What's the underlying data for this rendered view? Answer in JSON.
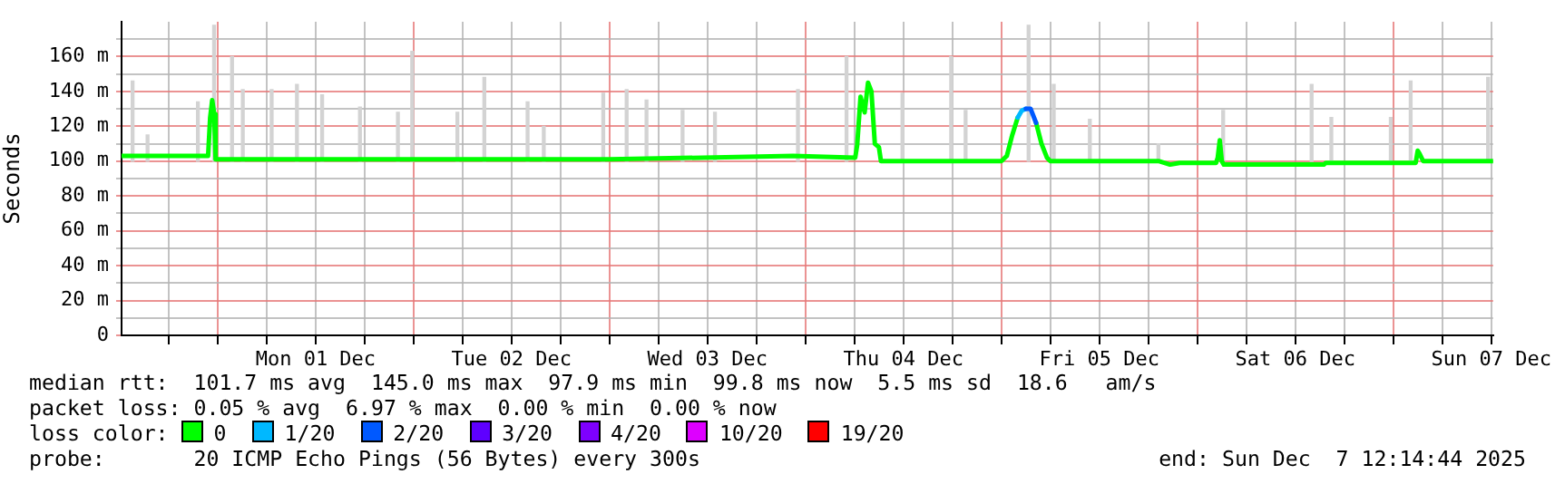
{
  "chart_data": {
    "type": "line",
    "ylabel": "Seconds",
    "legend_title": "loss color:",
    "legend": "bottom",
    "grid": true,
    "line_style": "solid",
    "marker": "none",
    "xlim": [
      "2025-11-30T12:14",
      "2025-12-07T12:14"
    ],
    "xticks": [
      {
        "value": "2025-11-30T18:00",
        "label": null
      },
      {
        "value": "2025-12-01T00:00",
        "label": null
      },
      {
        "value": "2025-12-01T06:00",
        "label": null
      },
      {
        "value": "2025-12-01T12:00",
        "label": "Mon 01 Dec"
      },
      {
        "value": "2025-12-01T18:00",
        "label": null
      },
      {
        "value": "2025-12-02T00:00",
        "label": null
      },
      {
        "value": "2025-12-02T06:00",
        "label": null
      },
      {
        "value": "2025-12-02T12:00",
        "label": "Tue 02 Dec"
      },
      {
        "value": "2025-12-02T18:00",
        "label": null
      },
      {
        "value": "2025-12-03T00:00",
        "label": null
      },
      {
        "value": "2025-12-03T06:00",
        "label": null
      },
      {
        "value": "2025-12-03T12:00",
        "label": "Wed 03 Dec"
      },
      {
        "value": "2025-12-03T18:00",
        "label": null
      },
      {
        "value": "2025-12-04T00:00",
        "label": null
      },
      {
        "value": "2025-12-04T06:00",
        "label": null
      },
      {
        "value": "2025-12-04T12:00",
        "label": "Thu 04 Dec"
      },
      {
        "value": "2025-12-04T18:00",
        "label": null
      },
      {
        "value": "2025-12-05T00:00",
        "label": null
      },
      {
        "value": "2025-12-05T06:00",
        "label": null
      },
      {
        "value": "2025-12-05T12:00",
        "label": "Fri 05 Dec"
      },
      {
        "value": "2025-12-05T18:00",
        "label": null
      },
      {
        "value": "2025-12-06T00:00",
        "label": null
      },
      {
        "value": "2025-12-06T06:00",
        "label": null
      },
      {
        "value": "2025-12-06T12:00",
        "label": "Sat 06 Dec"
      },
      {
        "value": "2025-12-06T18:00",
        "label": null
      },
      {
        "value": "2025-12-07T00:00",
        "label": null
      },
      {
        "value": "2025-12-07T06:00",
        "label": null
      },
      {
        "value": "2025-12-07T12:00",
        "label": "Sun 07 Dec"
      }
    ],
    "ylim": [
      0,
      180
    ],
    "yticks": [
      0,
      {
        "value": 10,
        "label": null
      },
      {
        "value": 20,
        "label": "20 m"
      },
      {
        "value": 30,
        "label": null
      },
      {
        "value": 40,
        "label": "40 m"
      },
      {
        "value": 50,
        "label": null
      },
      {
        "value": 60,
        "label": "60 m"
      },
      {
        "value": 70,
        "label": null
      },
      {
        "value": 80,
        "label": "80 m"
      },
      {
        "value": 90,
        "label": null
      },
      {
        "value": 100,
        "label": "100 m"
      },
      {
        "value": 110,
        "label": null
      },
      {
        "value": 120,
        "label": "120 m"
      },
      {
        "value": 130,
        "label": null
      },
      {
        "value": 140,
        "label": "140 m"
      },
      {
        "value": 150,
        "label": null
      },
      {
        "value": 160,
        "label": "160 m"
      },
      {
        "value": 170,
        "label": null
      }
    ],
    "series": [
      {
        "type": "bar",
        "color": "#d3d3d3",
        "x": [
          "2025-11-30T13:35",
          "2025-11-30T15:25",
          "2025-11-30T21:35",
          "2025-11-30T23:34",
          "2025-12-01T01:46",
          "2025-12-01T03:05",
          "2025-12-01T06:37",
          "2025-12-01T09:43",
          "2025-12-01T12:48",
          "2025-12-01T17:26",
          "2025-12-01T22:05",
          "2025-12-01T23:50",
          "2025-12-02T05:22",
          "2025-12-02T08:40",
          "2025-12-02T13:58",
          "2025-12-02T15:57",
          "2025-12-02T23:14",
          "2025-12-03T02:06",
          "2025-12-03T04:32",
          "2025-12-03T08:57",
          "2025-12-03T12:55",
          "2025-12-03T23:05",
          "2025-12-04T05:02",
          "2025-12-04T11:53",
          "2025-12-04T17:51",
          "2025-12-04T19:37",
          "2025-12-05T03:20",
          "2025-12-05T06:25",
          "2025-12-05T10:50",
          "2025-12-05T19:14",
          "2025-12-06T03:10",
          "2025-12-06T14:00",
          "2025-12-06T16:25",
          "2025-12-06T23:42",
          "2025-12-07T02:08",
          "2025-12-07T11:37"
        ],
        "base": [
          100,
          100,
          100,
          100,
          100,
          100,
          100,
          100,
          100,
          100,
          100,
          100,
          100,
          100,
          100,
          100,
          100,
          100,
          100,
          100,
          100,
          100,
          100,
          100,
          100,
          100,
          100,
          100,
          100,
          100,
          100,
          100,
          100,
          100,
          100,
          100
        ],
        "values": [
          46,
          15,
          34,
          78,
          60,
          41,
          41,
          44,
          38,
          31,
          28,
          63,
          28,
          48,
          34,
          20,
          39,
          41,
          35,
          29,
          28,
          41,
          60,
          39,
          60,
          29,
          78,
          44,
          24,
          10,
          29,
          44,
          25,
          25,
          46,
          48
        ]
      },
      {
        "name": "0",
        "color": "#00ff00",
        "x": [
          "2025-11-30T12:14",
          "2025-11-30T22:50",
          "2025-11-30T23:05",
          "2025-11-30T23:20",
          "2025-11-30T23:35",
          "2025-11-30T23:45",
          "2025-12-01T00:00",
          "2025-12-02T00:00",
          "2025-12-03T00:00",
          "2025-12-03T22:30",
          "2025-12-04T06:06",
          "2025-12-04T06:20",
          "2025-12-04T06:45",
          "2025-12-04T07:15",
          "2025-12-04T07:40",
          "2025-12-04T08:05",
          "2025-12-04T08:30",
          "2025-12-04T09:00",
          "2025-12-04T09:15",
          "2025-12-05T00:00",
          "2025-12-05T00:40",
          "2025-12-05T01:20",
          "2025-12-05T02:00",
          "2025-12-05T02:40",
          "2025-12-05T03:35",
          "2025-12-05T04:15",
          "2025-12-05T04:55",
          "2025-12-05T05:35",
          "2025-12-05T06:00",
          "2025-12-05T19:20",
          "2025-12-05T20:40",
          "2025-12-05T21:50",
          "2025-12-06T02:18",
          "2025-12-06T02:30",
          "2025-12-06T02:45",
          "2025-12-06T03:00",
          "2025-12-06T03:15",
          "2025-12-06T15:30",
          "2025-12-06T15:45",
          "2025-12-07T02:45",
          "2025-12-07T03:00",
          "2025-12-07T03:15",
          "2025-12-07T03:40",
          "2025-12-07T12:14"
        ],
        "values": [
          103,
          103,
          125,
          135,
          127,
          101,
          101,
          101,
          101,
          103,
          102,
          109,
          137,
          128,
          145,
          140,
          110,
          108,
          100,
          100,
          103,
          115,
          125,
          null,
          null,
          122,
          110,
          102,
          100,
          100,
          98,
          99,
          99,
          102,
          112,
          100,
          98,
          98,
          99,
          99,
          106,
          104,
          100,
          100
        ]
      },
      {
        "name": "1/20",
        "color": "#00b8ff",
        "x": [
          "2025-12-05T02:00",
          "2025-12-05T02:30",
          "2025-12-05T03:00"
        ],
        "values": [
          125,
          129,
          130
        ]
      },
      {
        "name": "2/20",
        "color": "#0059ff",
        "x": [
          "2025-12-05T03:00",
          "2025-12-05T03:35",
          "2025-12-05T04:15"
        ],
        "values": [
          130,
          130,
          122
        ]
      },
      {
        "name": "3/20",
        "color": "#5e00ff"
      },
      {
        "name": "4/20",
        "color": "#7e00ff"
      },
      {
        "name": "10/20",
        "color": "#dd00ff"
      },
      {
        "name": "19/20",
        "color": "#ff0000"
      }
    ],
    "annotations": [
      "median rtt:  101.7 ms avg  145.0 ms max  97.9 ms min  99.8 ms now  5.5 ms sd  18.6   am/s",
      "packet loss: 0.05 % avg  6.97 % max  0.00 % min  0.00 % now",
      "probe:       20 ICMP Echo Pings (56 Bytes) every 300s",
      "end: Sun Dec  7 12:14:44 2025"
    ]
  }
}
